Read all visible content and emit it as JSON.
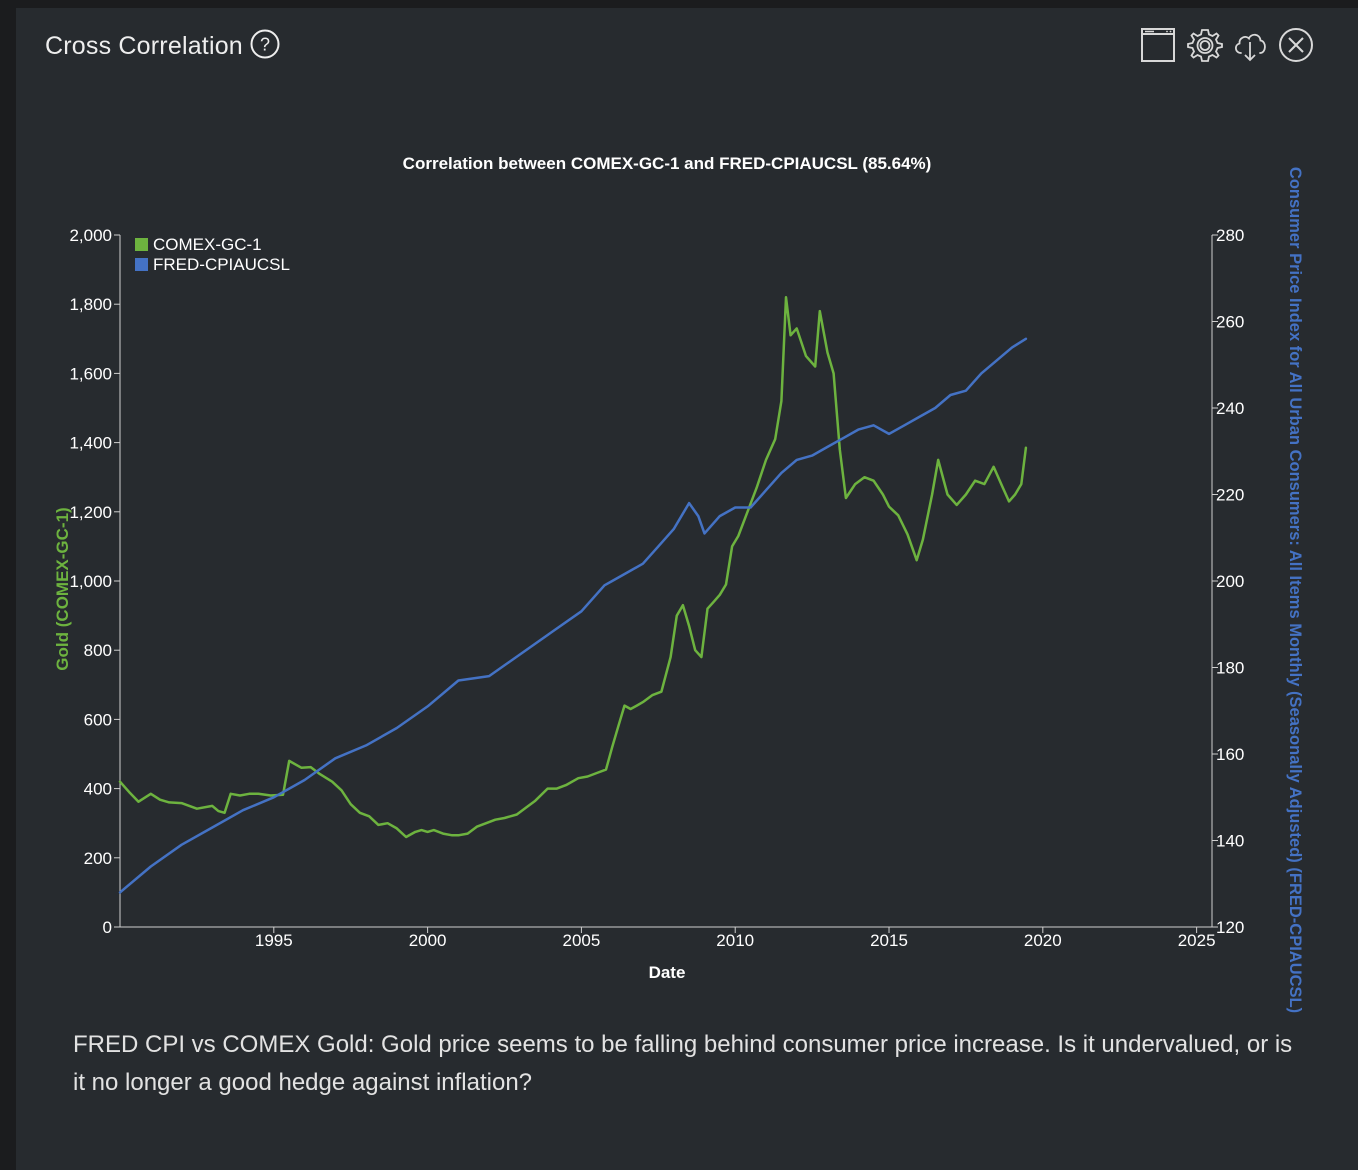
{
  "header": {
    "title": "Cross Correlation",
    "help_icon": "help-circle-icon",
    "tools": [
      "window-icon",
      "gear-icon",
      "cloud-download-icon",
      "close-circle-icon"
    ]
  },
  "description": "FRED CPI vs COMEX Gold: Gold price seems to be falling behind consumer price increase. Is it undervalued, or is it no longer a good hedge against inflation?",
  "chart_data": {
    "type": "line",
    "title": "Correlation between COMEX-GC-1 and FRED-CPIAUCSL (85.64%)",
    "xlabel": "Date",
    "ylabel_left": "Gold (COMEX-GC-1)",
    "ylabel_right": "Consumer Price Index for All Urban Consumers: All Items Monthly (Seasonally Adjusted) (FRED-CPIAUCSL)",
    "xlim": [
      1990.0,
      2025.5
    ],
    "xticks": [
      "1995",
      "2000",
      "2005",
      "2010",
      "2015",
      "2020",
      "2025"
    ],
    "ylim_left": [
      0,
      2000
    ],
    "yticks_left": [
      "0",
      "200",
      "400",
      "600",
      "800",
      "1,000",
      "1,200",
      "1,400",
      "1,600",
      "1,800",
      "2,000"
    ],
    "ylim_right": [
      120,
      280
    ],
    "yticks_right": [
      "120",
      "140",
      "160",
      "180",
      "200",
      "220",
      "240",
      "260",
      "280"
    ],
    "grid": false,
    "legend_position": "top-left",
    "series": [
      {
        "name": "COMEX-GC-1",
        "color": "#6db33f",
        "axis": "left",
        "x": [
          1990.0,
          1990.3,
          1990.6,
          1991.0,
          1991.3,
          1991.6,
          1992.0,
          1992.5,
          1993.0,
          1993.2,
          1993.4,
          1993.6,
          1993.9,
          1994.2,
          1994.5,
          1994.9,
          1995.3,
          1995.5,
          1995.9,
          1996.2,
          1996.5,
          1996.9,
          1997.2,
          1997.5,
          1997.8,
          1998.1,
          1998.4,
          1998.7,
          1999.0,
          1999.3,
          1999.6,
          1999.8,
          2000.0,
          2000.2,
          2000.5,
          2000.8,
          2001.0,
          2001.3,
          2001.6,
          2001.9,
          2002.2,
          2002.5,
          2002.9,
          2003.2,
          2003.5,
          2003.9,
          2004.2,
          2004.5,
          2004.9,
          2005.2,
          2005.5,
          2005.8,
          2006.0,
          2006.2,
          2006.4,
          2006.6,
          2006.8,
          2007.0,
          2007.3,
          2007.6,
          2007.9,
          2008.1,
          2008.3,
          2008.5,
          2008.7,
          2008.9,
          2009.1,
          2009.3,
          2009.5,
          2009.7,
          2009.9,
          2010.1,
          2010.4,
          2010.7,
          2011.0,
          2011.3,
          2011.5,
          2011.65,
          2011.8,
          2012.0,
          2012.3,
          2012.6,
          2012.75,
          2013.0,
          2013.2,
          2013.4,
          2013.6,
          2013.9,
          2014.2,
          2014.5,
          2014.8,
          2015.0,
          2015.3,
          2015.6,
          2015.9,
          2016.1,
          2016.4,
          2016.6,
          2016.9,
          2017.2,
          2017.5,
          2017.8,
          2018.1,
          2018.4,
          2018.7,
          2018.9,
          2019.1,
          2019.3,
          2019.45
        ],
        "values": [
          420,
          390,
          362,
          385,
          368,
          360,
          358,
          342,
          350,
          335,
          330,
          385,
          380,
          385,
          385,
          380,
          382,
          480,
          460,
          462,
          442,
          420,
          395,
          355,
          330,
          320,
          295,
          300,
          285,
          260,
          275,
          280,
          275,
          280,
          270,
          265,
          265,
          270,
          290,
          300,
          310,
          315,
          325,
          345,
          365,
          400,
          400,
          410,
          430,
          435,
          445,
          455,
          520,
          580,
          640,
          630,
          640,
          650,
          670,
          680,
          780,
          900,
          930,
          870,
          800,
          780,
          920,
          940,
          960,
          990,
          1100,
          1130,
          1200,
          1270,
          1350,
          1410,
          1520,
          1820,
          1710,
          1730,
          1650,
          1620,
          1780,
          1660,
          1600,
          1380,
          1240,
          1280,
          1300,
          1290,
          1250,
          1215,
          1190,
          1135,
          1060,
          1120,
          1250,
          1350,
          1250,
          1220,
          1250,
          1290,
          1280,
          1330,
          1270,
          1230,
          1250,
          1280,
          1385
        ]
      },
      {
        "name": "FRED-CPIAUCSL",
        "color": "#4472c4",
        "axis": "right",
        "x": [
          1990.0,
          1991.0,
          1992.0,
          1993.0,
          1994.0,
          1995.0,
          1996.0,
          1997.0,
          1998.0,
          1999.0,
          2000.0,
          2001.0,
          2002.0,
          2003.0,
          2004.0,
          2005.0,
          2005.75,
          2006.0,
          2006.5,
          2007.0,
          2007.5,
          2008.0,
          2008.5,
          2008.8,
          2009.0,
          2009.5,
          2010.0,
          2010.5,
          2011.0,
          2011.5,
          2012.0,
          2012.5,
          2013.0,
          2013.5,
          2014.0,
          2014.5,
          2015.0,
          2015.5,
          2016.0,
          2016.5,
          2017.0,
          2017.5,
          2018.0,
          2018.5,
          2019.0,
          2019.45
        ],
        "values": [
          128,
          134,
          139,
          143,
          147,
          150,
          154,
          159,
          162,
          166,
          171,
          177,
          178,
          183,
          188,
          193,
          199,
          200,
          202,
          204,
          208,
          212,
          218,
          215,
          211,
          215,
          217,
          217,
          221,
          225,
          228,
          229,
          231,
          233,
          235,
          236,
          234,
          236,
          238,
          240,
          243,
          244,
          248,
          251,
          254,
          256
        ]
      }
    ]
  }
}
